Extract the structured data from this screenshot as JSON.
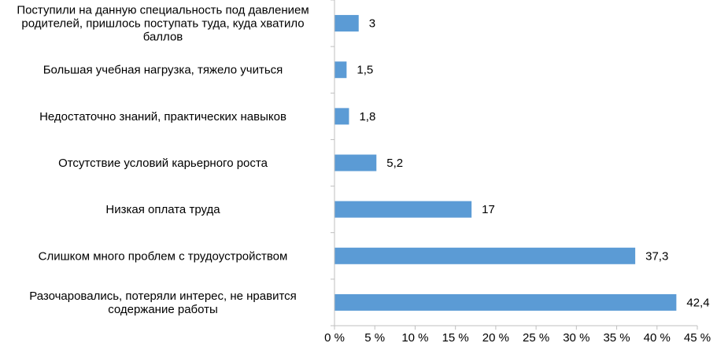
{
  "chart_data": {
    "type": "bar",
    "orientation": "horizontal",
    "categories": [
      [
        "Поступили на данную специальность под давлением",
        "родителей, пришлось поступать туда, куда хватило",
        "баллов"
      ],
      [
        "Большая учебная нагрузка, тяжело учиться"
      ],
      [
        "Недостаточно знаний, практических навыков"
      ],
      [
        "Отсутствие условий карьерного роста"
      ],
      [
        "Низкая оплата труда"
      ],
      [
        "Слишком много проблем с трудоустройством"
      ],
      [
        "Разочаровались, потеряли интерес, не нравится",
        "содержание работы"
      ]
    ],
    "values": [
      3,
      1.5,
      1.8,
      5.2,
      17,
      37.3,
      42.4
    ],
    "value_labels": [
      "3",
      "1,5",
      "1,8",
      "5,2",
      "17",
      "37,3",
      "42,4"
    ],
    "x_ticks": [
      "0 %",
      "5 %",
      "10 %",
      "15 %",
      "20 %",
      "25 %",
      "30 %",
      "35 %",
      "40 %",
      "45 %"
    ],
    "xlim": [
      0,
      45
    ],
    "title": "",
    "xlabel": "",
    "ylabel": "",
    "grid": false,
    "legend": "none",
    "bar_color": "#5b9bd5",
    "axis_color": "#bfbfbf"
  }
}
